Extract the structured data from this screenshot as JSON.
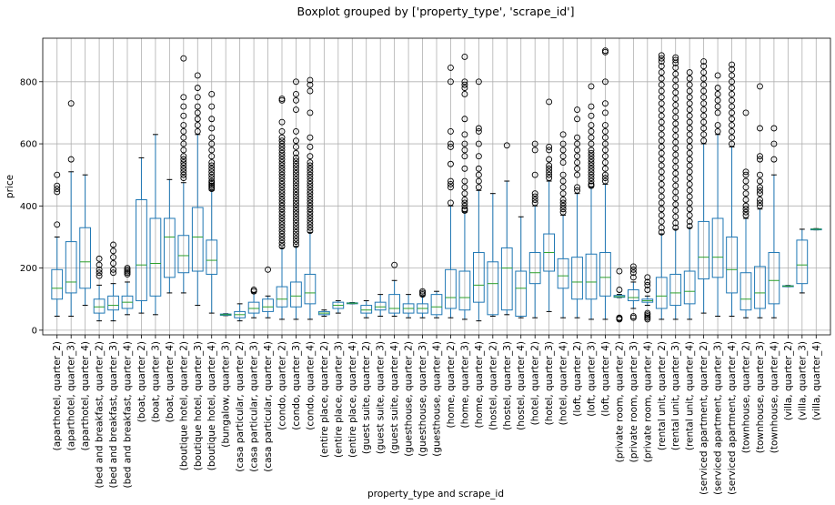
{
  "chart_data": {
    "type": "box",
    "title": "Boxplot grouped by ['property_type', 'scrape_id']",
    "xlabel": "property_type and scrape_id",
    "ylabel": "price",
    "ylim": [
      -15,
      940
    ],
    "yticks": [
      0,
      200,
      400,
      600,
      800
    ],
    "grid": true,
    "colors": {
      "box": "#1f77b4",
      "median": "#2ca02c",
      "whisker": "#1f77b4",
      "flier": "#000000",
      "grid": "#b0b0b0"
    },
    "categories": [
      "(aparthotel, quarter_2)",
      "(aparthotel, quarter_3)",
      "(aparthotel, quarter_4)",
      "(bed and breakfast, quarter_2)",
      "(bed and breakfast, quarter_3)",
      "(bed and breakfast, quarter_4)",
      "(boat, quarter_2)",
      "(boat, quarter_3)",
      "(boat, quarter_4)",
      "(boutique hotel, quarter_2)",
      "(boutique hotel, quarter_3)",
      "(boutique hotel, quarter_4)",
      "(bungalow, quarter_3)",
      "(casa particular, quarter_2)",
      "(casa particular, quarter_3)",
      "(casa particular, quarter_4)",
      "(condo, quarter_2)",
      "(condo, quarter_3)",
      "(condo, quarter_4)",
      "(entire place, quarter_2)",
      "(entire place, quarter_3)",
      "(entire place, quarter_4)",
      "(guest suite, quarter_2)",
      "(guest suite, quarter_3)",
      "(guest suite, quarter_4)",
      "(guesthouse, quarter_2)",
      "(guesthouse, quarter_3)",
      "(guesthouse, quarter_4)",
      "(home, quarter_2)",
      "(home, quarter_3)",
      "(home, quarter_4)",
      "(hostel, quarter_2)",
      "(hostel, quarter_3)",
      "(hostel, quarter_4)",
      "(hotel, quarter_2)",
      "(hotel, quarter_3)",
      "(hotel, quarter_4)",
      "(loft, quarter_2)",
      "(loft, quarter_3)",
      "(loft, quarter_4)",
      "(private room, quarter_2)",
      "(private room, quarter_3)",
      "(private room, quarter_4)",
      "(rental unit, quarter_2)",
      "(rental unit, quarter_3)",
      "(rental unit, quarter_4)",
      "(serviced apartment, quarter_2)",
      "(serviced apartment, quarter_3)",
      "(serviced apartment, quarter_4)",
      "(townhouse, quarter_2)",
      "(townhouse, quarter_3)",
      "(townhouse, quarter_4)",
      "(villa, quarter_2)",
      "(villa, quarter_3)",
      "(villa, quarter_4)"
    ],
    "boxes": [
      {
        "wl": 45,
        "q1": 100,
        "med": 135,
        "q3": 195,
        "wh": 300,
        "fliers": [
          340,
          445,
          455,
          465,
          500
        ]
      },
      {
        "wl": 45,
        "q1": 120,
        "med": 155,
        "q3": 285,
        "wh": 510,
        "fliers": [
          550,
          730
        ]
      },
      {
        "wl": 80,
        "q1": 135,
        "med": 220,
        "q3": 330,
        "wh": 500,
        "fliers": []
      },
      {
        "wl": 30,
        "q1": 55,
        "med": 75,
        "q3": 100,
        "wh": 145,
        "fliers": [
          175,
          185,
          195,
          210,
          230
        ]
      },
      {
        "wl": 30,
        "q1": 65,
        "med": 80,
        "q3": 110,
        "wh": 150,
        "fliers": [
          185,
          195,
          215,
          235,
          255,
          275
        ]
      },
      {
        "wl": 50,
        "q1": 70,
        "med": 90,
        "q3": 110,
        "wh": 155,
        "fliers": [
          180,
          185,
          190,
          195,
          200
        ]
      },
      {
        "wl": 55,
        "q1": 95,
        "med": 210,
        "q3": 420,
        "wh": 555,
        "fliers": []
      },
      {
        "wl": 50,
        "q1": 110,
        "med": 215,
        "q3": 360,
        "wh": 630,
        "fliers": []
      },
      {
        "wl": 120,
        "q1": 170,
        "med": 300,
        "q3": 360,
        "wh": 485,
        "fliers": []
      },
      {
        "wl": 120,
        "q1": 185,
        "med": 240,
        "q3": 305,
        "wh": 475,
        "fliers": [
          490,
          500,
          510,
          520,
          530,
          540,
          550,
          560,
          580,
          600,
          620,
          640,
          660,
          690,
          720,
          750,
          875
        ]
      },
      {
        "wl": 80,
        "q1": 190,
        "med": 300,
        "q3": 395,
        "wh": 630,
        "fliers": [
          640,
          660,
          680,
          700,
          720,
          750,
          780,
          820
        ]
      },
      {
        "wl": 55,
        "q1": 180,
        "med": 225,
        "q3": 290,
        "wh": 450,
        "fliers": [
          455,
          460,
          465,
          470,
          475,
          480,
          490,
          500,
          510,
          520,
          530,
          540,
          560,
          580,
          600,
          620,
          650,
          680,
          720,
          760
        ]
      },
      {
        "wl": 47,
        "q1": 48,
        "med": 50,
        "q3": 52,
        "wh": 53,
        "fliers": []
      },
      {
        "wl": 30,
        "q1": 40,
        "med": 50,
        "q3": 60,
        "wh": 85,
        "fliers": []
      },
      {
        "wl": 40,
        "q1": 55,
        "med": 70,
        "q3": 90,
        "wh": 120,
        "fliers": [
          125,
          130
        ]
      },
      {
        "wl": 40,
        "q1": 60,
        "med": 75,
        "q3": 100,
        "wh": 110,
        "fliers": [
          195
        ]
      },
      {
        "wl": 35,
        "q1": 75,
        "med": 100,
        "q3": 140,
        "wh": 265,
        "fliers": [
          270,
          280,
          290,
          300,
          310,
          320,
          330,
          340,
          350,
          360,
          370,
          380,
          390,
          400,
          410,
          420,
          430,
          440,
          450,
          460,
          470,
          480,
          490,
          500,
          510,
          520,
          530,
          540,
          550,
          560,
          570,
          580,
          590,
          600,
          610,
          620,
          640,
          670,
          740,
          745
        ]
      },
      {
        "wl": 35,
        "q1": 75,
        "med": 110,
        "q3": 155,
        "wh": 270,
        "fliers": [
          275,
          285,
          295,
          305,
          315,
          325,
          335,
          345,
          355,
          365,
          375,
          385,
          395,
          405,
          415,
          425,
          435,
          445,
          455,
          465,
          475,
          485,
          495,
          505,
          515,
          525,
          535,
          545,
          555,
          570,
          590,
          610,
          640,
          710,
          740,
          760,
          800
        ]
      },
      {
        "wl": 35,
        "q1": 85,
        "med": 120,
        "q3": 180,
        "wh": 315,
        "fliers": [
          320,
          330,
          340,
          350,
          360,
          370,
          380,
          390,
          400,
          410,
          420,
          430,
          440,
          450,
          460,
          470,
          480,
          490,
          500,
          510,
          520,
          530,
          540,
          560,
          590,
          620,
          700,
          770,
          790,
          805
        ]
      },
      {
        "wl": 45,
        "q1": 50,
        "med": 55,
        "q3": 60,
        "wh": 65,
        "fliers": []
      },
      {
        "wl": 55,
        "q1": 70,
        "med": 80,
        "q3": 90,
        "wh": 95,
        "fliers": []
      },
      {
        "wl": 85,
        "q1": 86,
        "med": 87,
        "q3": 88,
        "wh": 89,
        "fliers": []
      },
      {
        "wl": 40,
        "q1": 55,
        "med": 65,
        "q3": 80,
        "wh": 95,
        "fliers": []
      },
      {
        "wl": 45,
        "q1": 65,
        "med": 75,
        "q3": 90,
        "wh": 115,
        "fliers": []
      },
      {
        "wl": 45,
        "q1": 55,
        "med": 70,
        "q3": 115,
        "wh": 160,
        "fliers": [
          210
        ]
      },
      {
        "wl": 40,
        "q1": 55,
        "med": 70,
        "q3": 85,
        "wh": 115,
        "fliers": []
      },
      {
        "wl": 40,
        "q1": 55,
        "med": 70,
        "q3": 85,
        "wh": 110,
        "fliers": [
          115,
          120,
          125
        ]
      },
      {
        "wl": 40,
        "q1": 50,
        "med": 75,
        "q3": 115,
        "wh": 125,
        "fliers": []
      },
      {
        "wl": 40,
        "q1": 70,
        "med": 105,
        "q3": 195,
        "wh": 400,
        "fliers": [
          410,
          460,
          470,
          480,
          535,
          590,
          600,
          640,
          800,
          845
        ]
      },
      {
        "wl": 35,
        "q1": 65,
        "med": 105,
        "q3": 190,
        "wh": 380,
        "fliers": [
          385,
          390,
          400,
          410,
          420,
          440,
          460,
          480,
          520,
          560,
          580,
          600,
          630,
          680,
          760,
          780,
          790,
          800,
          880
        ]
      },
      {
        "wl": 30,
        "q1": 90,
        "med": 145,
        "q3": 250,
        "wh": 450,
        "fliers": [
          460,
          480,
          500,
          520,
          560,
          600,
          640,
          650,
          800
        ]
      },
      {
        "wl": 45,
        "q1": 50,
        "med": 150,
        "q3": 220,
        "wh": 440,
        "fliers": []
      },
      {
        "wl": 50,
        "q1": 65,
        "med": 200,
        "q3": 265,
        "wh": 480,
        "fliers": [
          595
        ]
      },
      {
        "wl": 40,
        "q1": 45,
        "med": 135,
        "q3": 190,
        "wh": 365,
        "fliers": []
      },
      {
        "wl": 40,
        "q1": 150,
        "med": 185,
        "q3": 250,
        "wh": 400,
        "fliers": [
          410,
          420,
          430,
          440,
          500,
          580,
          600
        ]
      },
      {
        "wl": 60,
        "q1": 190,
        "med": 250,
        "q3": 310,
        "wh": 480,
        "fliers": [
          490,
          500,
          510,
          520,
          530,
          550,
          580,
          590,
          735
        ]
      },
      {
        "wl": 40,
        "q1": 135,
        "med": 175,
        "q3": 230,
        "wh": 370,
        "fliers": [
          380,
          390,
          400,
          410,
          420,
          440,
          460,
          480,
          500,
          540,
          560,
          580,
          600,
          630
        ]
      },
      {
        "wl": 40,
        "q1": 100,
        "med": 155,
        "q3": 235,
        "wh": 440,
        "fliers": [
          450,
          460,
          500,
          520,
          540,
          560,
          580,
          600,
          620,
          680,
          710
        ]
      },
      {
        "wl": 35,
        "q1": 100,
        "med": 155,
        "q3": 245,
        "wh": 460,
        "fliers": [
          465,
          470,
          480,
          490,
          500,
          510,
          520,
          530,
          540,
          550,
          560,
          570,
          580,
          600,
          620,
          640,
          660,
          690,
          720,
          785
        ]
      },
      {
        "wl": 35,
        "q1": 110,
        "med": 170,
        "q3": 250,
        "wh": 470,
        "fliers": [
          480,
          490,
          500,
          520,
          540,
          560,
          580,
          600,
          620,
          640,
          660,
          700,
          730,
          800,
          895,
          900
        ]
      },
      {
        "wl": 105,
        "q1": 106,
        "med": 108,
        "q3": 112,
        "wh": 115,
        "fliers": [
          35,
          38,
          40,
          130,
          190
        ]
      },
      {
        "wl": 70,
        "q1": 95,
        "med": 105,
        "q3": 130,
        "wh": 155,
        "fliers": [
          40,
          45,
          170,
          185,
          195,
          205
        ]
      },
      {
        "wl": 80,
        "q1": 90,
        "med": 95,
        "q3": 100,
        "wh": 110,
        "fliers": [
          35,
          40,
          45,
          50,
          55,
          130,
          145,
          155,
          170
        ]
      },
      {
        "wl": 35,
        "q1": 70,
        "med": 110,
        "q3": 170,
        "wh": 310,
        "fliers": [
          315,
          330,
          350,
          370,
          390,
          410,
          430,
          450,
          470,
          490,
          510,
          530,
          550,
          570,
          590,
          610,
          630,
          650,
          670,
          690,
          710,
          730,
          750,
          770,
          790,
          810,
          830,
          850,
          865,
          875,
          885
        ]
      },
      {
        "wl": 35,
        "q1": 80,
        "med": 120,
        "q3": 180,
        "wh": 325,
        "fliers": [
          330,
          345,
          365,
          385,
          405,
          425,
          445,
          465,
          485,
          505,
          525,
          545,
          565,
          585,
          605,
          625,
          645,
          665,
          685,
          705,
          725,
          745,
          765,
          785,
          805,
          825,
          845,
          860,
          870,
          878
        ]
      },
      {
        "wl": 35,
        "q1": 85,
        "med": 125,
        "q3": 190,
        "wh": 330,
        "fliers": [
          335,
          350,
          370,
          390,
          410,
          430,
          450,
          470,
          490,
          510,
          530,
          550,
          570,
          590,
          610,
          630,
          650,
          670,
          690,
          710,
          730,
          750,
          770,
          790,
          810,
          830
        ]
      },
      {
        "wl": 55,
        "q1": 165,
        "med": 235,
        "q3": 350,
        "wh": 600,
        "fliers": [
          610,
          630,
          650,
          670,
          690,
          710,
          730,
          750,
          770,
          790,
          810,
          830,
          850,
          865
        ]
      },
      {
        "wl": 45,
        "q1": 170,
        "med": 235,
        "q3": 360,
        "wh": 630,
        "fliers": [
          640,
          660,
          700,
          720,
          740,
          760,
          780,
          820
        ]
      },
      {
        "wl": 45,
        "q1": 120,
        "med": 195,
        "q3": 300,
        "wh": 590,
        "fliers": [
          600,
          620,
          640,
          660,
          680,
          700,
          720,
          740,
          760,
          780,
          800,
          820,
          840,
          855
        ]
      },
      {
        "wl": 40,
        "q1": 65,
        "med": 100,
        "q3": 185,
        "wh": 360,
        "fliers": [
          370,
          380,
          390,
          400,
          420,
          440,
          460,
          480,
          500,
          510,
          700
        ]
      },
      {
        "wl": 40,
        "q1": 70,
        "med": 120,
        "q3": 205,
        "wh": 390,
        "fliers": [
          400,
          410,
          420,
          440,
          450,
          460,
          480,
          500,
          550,
          560,
          650,
          785
        ]
      },
      {
        "wl": 40,
        "q1": 85,
        "med": 160,
        "q3": 250,
        "wh": 500,
        "fliers": [
          550,
          600,
          650
        ]
      },
      {
        "wl": 140,
        "q1": 141,
        "med": 142,
        "q3": 143,
        "wh": 144,
        "fliers": []
      },
      {
        "wl": 120,
        "q1": 150,
        "med": 210,
        "q3": 290,
        "wh": 325,
        "fliers": []
      },
      {
        "wl": 323,
        "q1": 324,
        "med": 325,
        "q3": 326,
        "wh": 327,
        "fliers": []
      }
    ]
  }
}
